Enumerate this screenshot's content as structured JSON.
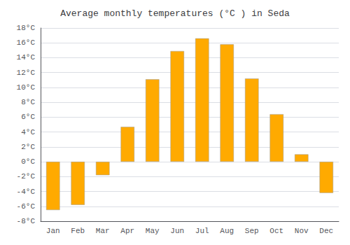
{
  "chart_data": {
    "type": "bar",
    "title": "Average monthly temperatures (°C ) in Seda",
    "categories": [
      "Jan",
      "Feb",
      "Mar",
      "Apr",
      "May",
      "Jun",
      "Jul",
      "Aug",
      "Sep",
      "Oct",
      "Nov",
      "Dec"
    ],
    "values": [
      -6.5,
      -5.8,
      -1.8,
      4.7,
      11.1,
      14.9,
      16.6,
      15.8,
      11.2,
      6.4,
      1.0,
      -4.2
    ],
    "color": "#FFAA00",
    "ylim": [
      -8,
      18
    ],
    "yticks": [
      {
        "value": -8,
        "label": "-8°C"
      },
      {
        "value": -6,
        "label": "-6°C"
      },
      {
        "value": -4,
        "label": "-4°C"
      },
      {
        "value": -2,
        "label": "-2°C"
      },
      {
        "value": 0,
        "label": "0°C"
      },
      {
        "value": 2,
        "label": "2°C"
      },
      {
        "value": 4,
        "label": "4°C"
      },
      {
        "value": 6,
        "label": "6°C"
      },
      {
        "value": 8,
        "label": "8°C"
      },
      {
        "value": 10,
        "label": "10°C"
      },
      {
        "value": 12,
        "label": "12°C"
      },
      {
        "value": 14,
        "label": "14°C"
      },
      {
        "value": 16,
        "label": "16°C"
      },
      {
        "value": 18,
        "label": "18°C"
      }
    ],
    "grid": true
  }
}
